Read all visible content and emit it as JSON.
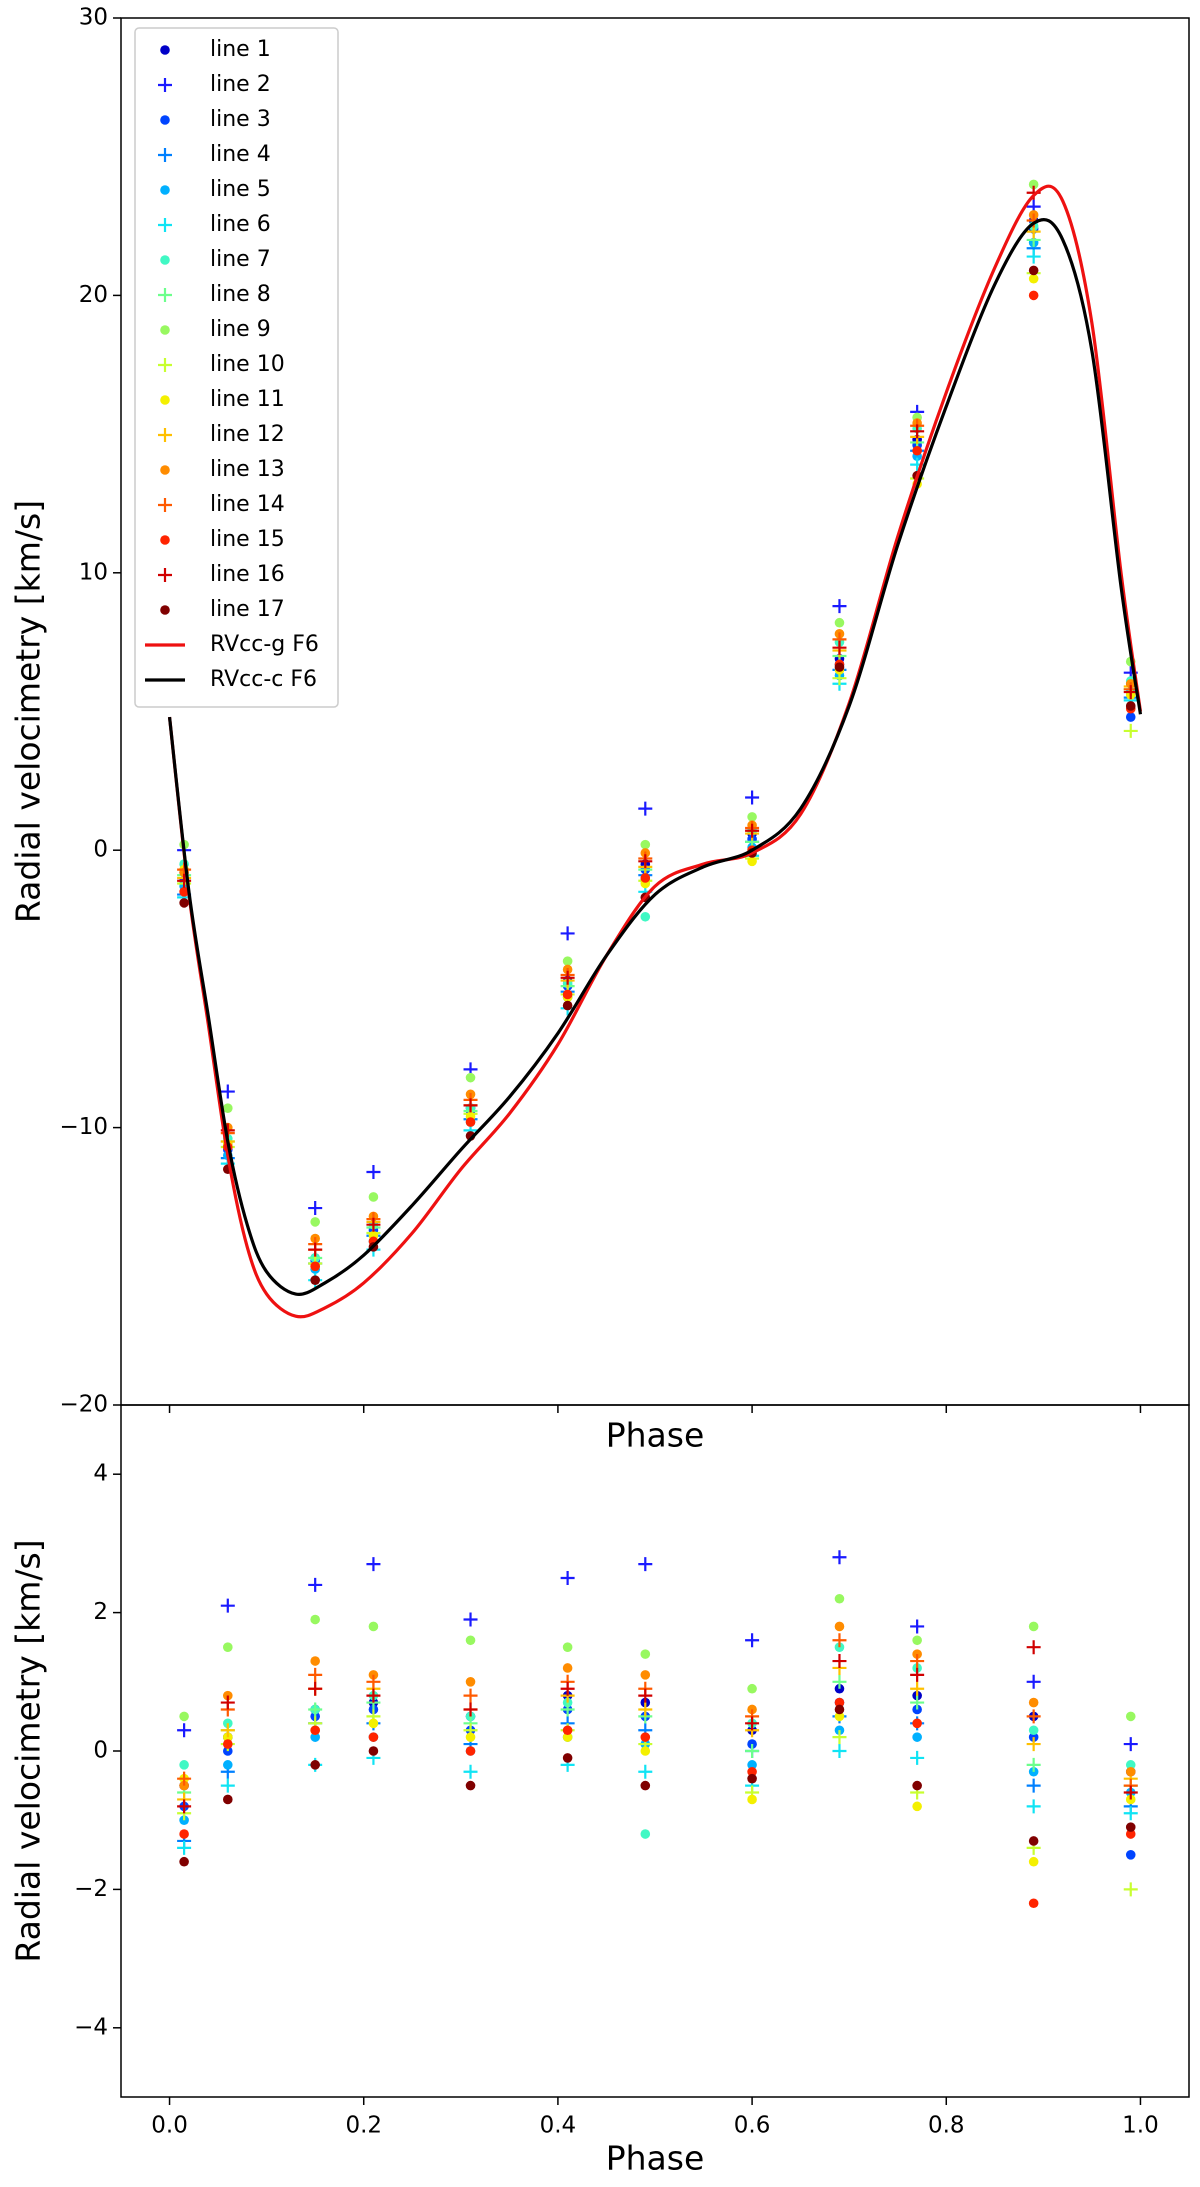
{
  "chart_data": [
    {
      "type": "scatter",
      "ylabel": "Radial velocimetry [km/s]",
      "xlabel": "Phase",
      "xlim": [
        -0.05,
        1.05
      ],
      "xticks": [
        0,
        0.2,
        0.4,
        0.6,
        0.8,
        1
      ],
      "xticklabels": false,
      "ylim": [
        -20,
        30
      ],
      "yticks": [
        {
          "value": -20,
          "label": "−20"
        },
        {
          "value": -10,
          "label": "−10"
        },
        0,
        10,
        20,
        30
      ],
      "legend": "upper left",
      "x": [
        0.015,
        0.06,
        0.15,
        0.21,
        0.31,
        0.41,
        0.49,
        0.6,
        0.69,
        0.77,
        0.89,
        0.99
      ],
      "series": [
        {
          "name": "line 1",
          "color": "#0000c8",
          "marker": "o",
          "values": [
            -0.8,
            -10.6,
            -14.7,
            -13.6,
            -9.3,
            -4.7,
            -0.5,
            0.6,
            6.9,
            14.8,
            22.7,
            6.0
          ]
        },
        {
          "name": "line 2",
          "color": "#1a1aff",
          "marker": "+",
          "values": [
            0.0,
            -8.7,
            -12.9,
            -11.6,
            -7.9,
            -3.0,
            1.5,
            1.9,
            8.8,
            15.8,
            23.2,
            6.4
          ]
        },
        {
          "name": "line 3",
          "color": "#0044ff",
          "marker": "o",
          "values": [
            -1.1,
            -10.8,
            -14.8,
            -13.7,
            -9.5,
            -4.9,
            -0.7,
            0.4,
            6.7,
            14.6,
            22.4,
            4.8
          ]
        },
        {
          "name": "line 4",
          "color": "#0080ff",
          "marker": "+",
          "values": [
            -1.6,
            -11.1,
            -14.9,
            -13.9,
            -9.7,
            -5.1,
            -0.9,
            0.3,
            6.5,
            14.4,
            21.7,
            5.5
          ]
        },
        {
          "name": "line 5",
          "color": "#00b0ff",
          "marker": "o",
          "values": [
            -1.3,
            -11.0,
            -15.1,
            -14.1,
            -9.8,
            -5.3,
            -1.1,
            0.1,
            6.3,
            14.2,
            21.9,
            5.7
          ]
        },
        {
          "name": "line 6",
          "color": "#10e4f4",
          "marker": "+",
          "values": [
            -1.7,
            -11.3,
            -15.5,
            -14.4,
            -10.1,
            -5.7,
            -1.5,
            -0.2,
            6.0,
            13.9,
            21.4,
            5.4
          ]
        },
        {
          "name": "line 7",
          "color": "#40f8c4",
          "marker": "o",
          "values": [
            -0.5,
            -10.4,
            -14.7,
            -13.5,
            -9.3,
            -4.8,
            -2.4,
            0.7,
            7.5,
            15.2,
            22.5,
            6.1
          ]
        },
        {
          "name": "line 8",
          "color": "#6cff8c",
          "marker": "+",
          "values": [
            -0.9,
            -10.5,
            -14.7,
            -13.6,
            -9.4,
            -4.9,
            -0.7,
            0.3,
            7.0,
            14.7,
            22.0,
            5.8
          ]
        },
        {
          "name": "line 9",
          "color": "#98f860",
          "marker": "o",
          "values": [
            0.2,
            -9.3,
            -13.4,
            -12.5,
            -8.2,
            -4.0,
            0.2,
            1.2,
            8.2,
            15.6,
            24.0,
            6.8
          ]
        },
        {
          "name": "line 10",
          "color": "#c8ff30",
          "marker": "+",
          "values": [
            -1.2,
            -10.7,
            -14.9,
            -13.8,
            -9.5,
            -5.2,
            -1.1,
            -0.3,
            6.2,
            13.4,
            20.8,
            4.3
          ]
        },
        {
          "name": "line 11",
          "color": "#f4f000",
          "marker": "o",
          "values": [
            -0.7,
            -10.6,
            -15.0,
            -13.9,
            -9.6,
            -5.3,
            -1.2,
            -0.4,
            6.5,
            13.2,
            20.6,
            5.6
          ]
        },
        {
          "name": "line 12",
          "color": "#ffc000",
          "marker": "+",
          "values": [
            -1.0,
            -10.5,
            -14.4,
            -13.4,
            -9.2,
            -4.7,
            -0.6,
            0.6,
            7.2,
            14.9,
            22.3,
            5.9
          ]
        },
        {
          "name": "line 13",
          "color": "#ff8c00",
          "marker": "o",
          "values": [
            -0.8,
            -10.0,
            -14.0,
            -13.2,
            -8.8,
            -4.3,
            -0.1,
            0.9,
            7.8,
            15.4,
            22.9,
            6.0
          ]
        },
        {
          "name": "line 14",
          "color": "#ff5a00",
          "marker": "+",
          "values": [
            -0.7,
            -10.2,
            -14.2,
            -13.3,
            -9.0,
            -4.5,
            -0.3,
            0.8,
            7.6,
            15.3,
            22.7,
            5.8
          ]
        },
        {
          "name": "line 15",
          "color": "#ff2400",
          "marker": "o",
          "values": [
            -1.5,
            -10.7,
            -15.0,
            -14.1,
            -9.8,
            -5.2,
            -1.0,
            0.0,
            6.7,
            14.4,
            20.0,
            5.1
          ]
        },
        {
          "name": "line 16",
          "color": "#d00000",
          "marker": "+",
          "values": [
            -1.1,
            -10.1,
            -14.4,
            -13.5,
            -9.2,
            -4.6,
            -0.4,
            0.7,
            7.3,
            15.1,
            23.7,
            5.7
          ]
        },
        {
          "name": "line 17",
          "color": "#800000",
          "marker": "o",
          "values": [
            -1.9,
            -11.5,
            -15.5,
            -14.3,
            -10.3,
            -5.6,
            -1.7,
            -0.1,
            6.6,
            13.5,
            20.9,
            5.2
          ]
        },
        {
          "name": "RVcc-g F6",
          "color": "#ee1111",
          "type": "line",
          "x": [
            0,
            0.02,
            0.04,
            0.06,
            0.08,
            0.1,
            0.13,
            0.16,
            0.2,
            0.25,
            0.3,
            0.35,
            0.4,
            0.45,
            0.5,
            0.55,
            0.6,
            0.65,
            0.7,
            0.75,
            0.8,
            0.85,
            0.89,
            0.92,
            0.95,
            0.98,
            1.0
          ],
          "values": [
            4.8,
            -1.6,
            -6.3,
            -11,
            -14.3,
            -16,
            -16.8,
            -16.5,
            -15.6,
            -13.8,
            -11.5,
            -9.5,
            -7,
            -3.8,
            -1.3,
            -0.5,
            -0.1,
            1.3,
            5.3,
            11.3,
            16.5,
            21,
            23.6,
            23.4,
            19,
            10,
            5
          ]
        },
        {
          "name": "RVcc-c F6",
          "color": "#000000",
          "type": "line",
          "x": [
            0,
            0.02,
            0.04,
            0.06,
            0.08,
            0.1,
            0.13,
            0.16,
            0.2,
            0.25,
            0.3,
            0.35,
            0.4,
            0.45,
            0.5,
            0.55,
            0.6,
            0.65,
            0.7,
            0.75,
            0.8,
            0.85,
            0.89,
            0.92,
            0.95,
            0.98,
            1.0
          ],
          "values": [
            4.8,
            -1.5,
            -6,
            -10.5,
            -13.5,
            -15.2,
            -16,
            -15.6,
            -14.6,
            -12.8,
            -10.8,
            -8.9,
            -6.6,
            -3.8,
            -1.6,
            -0.6,
            0,
            1.5,
            5.2,
            11,
            16,
            20.4,
            22.6,
            22,
            18,
            9.5,
            4.9
          ]
        }
      ]
    },
    {
      "type": "scatter",
      "ylabel": "Radial velocimetry [km/s]",
      "xlabel": "Phase",
      "xlim": [
        -0.05,
        1.05
      ],
      "xticks": [
        {
          "value": 0,
          "label": "0.0"
        },
        0.2,
        0.4,
        0.6,
        0.8,
        {
          "value": 1,
          "label": "1.0"
        }
      ],
      "ylim": [
        -5,
        5
      ],
      "yticks": [
        {
          "value": -4,
          "label": "−4"
        },
        {
          "value": -2,
          "label": "−2"
        },
        0,
        2,
        4
      ],
      "x": [
        0.015,
        0.06,
        0.15,
        0.21,
        0.31,
        0.41,
        0.49,
        0.6,
        0.69,
        0.77,
        0.89,
        0.99
      ],
      "series": [
        {
          "color": "#0000c8",
          "marker": "o",
          "values": [
            -0.5,
            0.2,
            0.6,
            0.7,
            0.5,
            0.8,
            0.7,
            0.3,
            0.9,
            0.8,
            0.5,
            -0.3
          ]
        },
        {
          "color": "#1a1aff",
          "marker": "+",
          "values": [
            0.3,
            2.1,
            2.4,
            2.7,
            1.9,
            2.5,
            2.7,
            1.6,
            2.8,
            1.8,
            1.0,
            0.1
          ]
        },
        {
          "color": "#0044ff",
          "marker": "o",
          "values": [
            -0.8,
            0.0,
            0.5,
            0.6,
            0.3,
            0.6,
            0.5,
            0.1,
            0.7,
            0.6,
            0.2,
            -1.5
          ]
        },
        {
          "color": "#0080ff",
          "marker": "+",
          "values": [
            -1.3,
            -0.3,
            0.4,
            0.4,
            0.1,
            0.4,
            0.3,
            0.0,
            0.5,
            0.4,
            -0.5,
            -0.8
          ]
        },
        {
          "color": "#00b0ff",
          "marker": "o",
          "values": [
            -1.0,
            -0.2,
            0.2,
            0.2,
            0.0,
            0.2,
            0.1,
            -0.2,
            0.3,
            0.2,
            -0.3,
            -0.6
          ]
        },
        {
          "color": "#10e4f4",
          "marker": "+",
          "values": [
            -1.4,
            -0.5,
            -0.2,
            -0.1,
            -0.3,
            -0.2,
            -0.3,
            -0.5,
            0.0,
            -0.1,
            -0.8,
            -0.9
          ]
        },
        {
          "color": "#40f8c4",
          "marker": "o",
          "values": [
            -0.2,
            0.4,
            0.6,
            0.8,
            0.5,
            0.7,
            -1.2,
            0.4,
            1.5,
            1.2,
            0.3,
            -0.2
          ]
        },
        {
          "color": "#6cff8c",
          "marker": "+",
          "values": [
            -0.6,
            0.3,
            0.6,
            0.7,
            0.4,
            0.6,
            0.5,
            0.0,
            1.0,
            0.7,
            -0.2,
            -0.5
          ]
        },
        {
          "color": "#98f860",
          "marker": "o",
          "values": [
            0.5,
            1.5,
            1.9,
            1.8,
            1.6,
            1.5,
            1.4,
            0.9,
            2.2,
            1.6,
            1.8,
            0.5
          ]
        },
        {
          "color": "#c8ff30",
          "marker": "+",
          "values": [
            -0.9,
            0.1,
            0.4,
            0.5,
            0.3,
            0.3,
            0.1,
            -0.6,
            0.2,
            -0.6,
            -1.4,
            -2.0
          ]
        },
        {
          "color": "#f4f000",
          "marker": "o",
          "values": [
            -0.4,
            0.2,
            0.3,
            0.4,
            0.2,
            0.2,
            0.0,
            -0.7,
            0.5,
            -0.8,
            -1.6,
            -0.7
          ]
        },
        {
          "color": "#ffc000",
          "marker": "+",
          "values": [
            -0.7,
            0.3,
            0.9,
            0.9,
            0.6,
            0.8,
            0.6,
            0.3,
            1.2,
            0.9,
            0.1,
            -0.4
          ]
        },
        {
          "color": "#ff8c00",
          "marker": "o",
          "values": [
            -0.5,
            0.8,
            1.3,
            1.1,
            1.0,
            1.2,
            1.1,
            0.6,
            1.8,
            1.4,
            0.7,
            -0.3
          ]
        },
        {
          "color": "#ff5a00",
          "marker": "+",
          "values": [
            -0.4,
            0.6,
            1.1,
            1.0,
            0.8,
            1.0,
            0.9,
            0.5,
            1.6,
            1.3,
            0.5,
            -0.5
          ]
        },
        {
          "color": "#ff2400",
          "marker": "o",
          "values": [
            -1.2,
            0.1,
            0.3,
            0.2,
            0.0,
            0.3,
            0.2,
            -0.3,
            0.7,
            0.4,
            -2.2,
            -1.2
          ]
        },
        {
          "color": "#d00000",
          "marker": "+",
          "values": [
            -0.8,
            0.7,
            0.9,
            0.8,
            0.6,
            0.9,
            0.8,
            0.4,
            1.3,
            1.1,
            1.5,
            -0.6
          ]
        },
        {
          "color": "#800000",
          "marker": "o",
          "values": [
            -1.6,
            -0.7,
            -0.2,
            0.0,
            -0.5,
            -0.1,
            -0.5,
            -0.4,
            0.6,
            -0.5,
            -1.3,
            -1.1
          ]
        }
      ]
    }
  ]
}
